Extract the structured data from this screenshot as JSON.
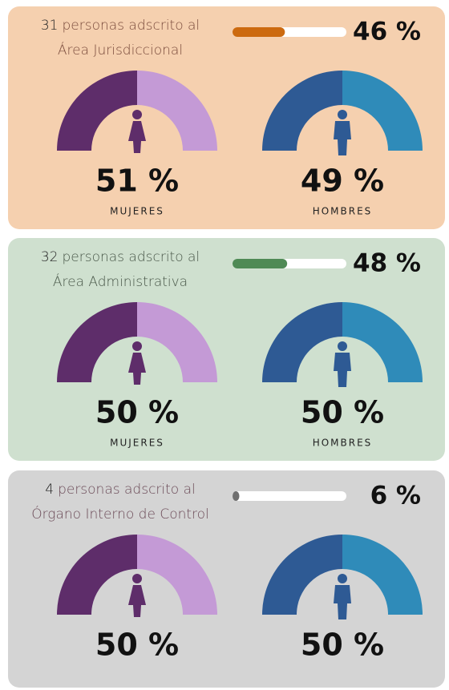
{
  "panels": [
    {
      "count": "31",
      "text": "personas adscrito al",
      "area": "Área Jurisdiccional",
      "background": "#f5d0af",
      "text_color": "#7a4b3c",
      "color": "#cc6a10",
      "percent": 46,
      "percent_label": "46 %",
      "women": {
        "label": "51 %",
        "caption": "MUJERES"
      },
      "men": {
        "label": "49 %",
        "caption": "HOMBRES"
      }
    },
    {
      "count": "32",
      "text": "personas adscrito al",
      "area": "Área Administrativa",
      "background": "#cfe0cf",
      "text_color": "#4a584a",
      "color": "#4f8a55",
      "percent": 48,
      "percent_label": "48 %",
      "women": {
        "label": "50 %",
        "caption": "MUJERES"
      },
      "men": {
        "label": "50 %",
        "caption": "HOMBRES"
      }
    },
    {
      "count": "4",
      "text": "personas adscrito al",
      "area": "Órgano Interno de Control",
      "background": "#d4d4d4",
      "text_color": "#6b4a57",
      "color": "#6f6f6f",
      "percent": 6,
      "percent_label": "6 %",
      "women": {
        "label": "50 %"
      },
      "men": {
        "label": "50 %"
      }
    }
  ]
}
